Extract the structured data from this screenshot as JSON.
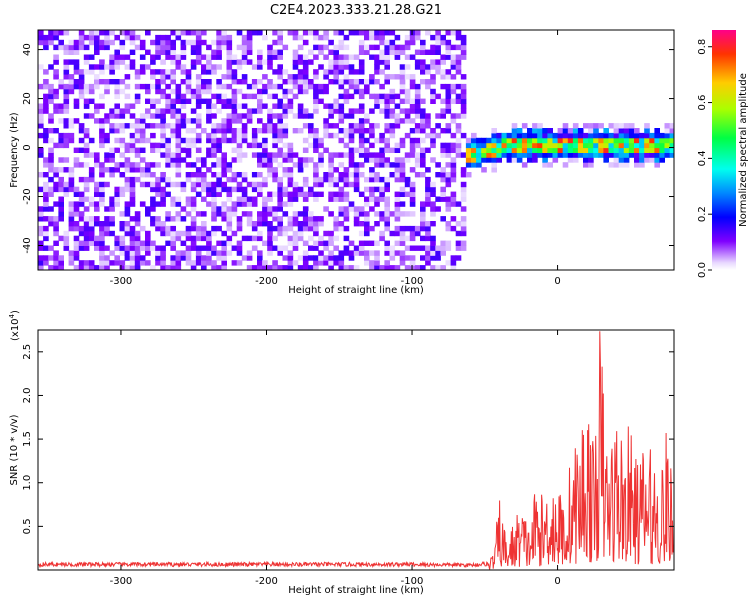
{
  "figure_title": "C2E4.2023.333.21.28.G21",
  "chart_data": [
    {
      "type": "heatmap",
      "title": "C2E4.2023.333.21.28.G21",
      "xlabel": "Height of straight line (km)",
      "ylabel": "Frequency (Hz)",
      "xlim": [
        -357,
        80
      ],
      "ylim": [
        -50,
        48
      ],
      "x_ticks": [
        -300,
        -200,
        -100,
        0
      ],
      "y_ticks": [
        -40,
        -20,
        0,
        20,
        40
      ],
      "grid": false,
      "colorbar": {
        "label": "Normalized spectral amplitude",
        "range": [
          0,
          0.86
        ],
        "ticks": [
          0.0,
          0.2,
          0.4,
          0.6,
          0.8
        ]
      },
      "regions": [
        {
          "x_range": [
            -357,
            -65
          ],
          "freq_range": [
            -50,
            48
          ],
          "amplitude": "low (0–0.15), broadband noise"
        },
        {
          "x_range": [
            -65,
            80
          ],
          "center_freq": 0,
          "amplitude": "high (0.3–0.86), narrow signal band near 0 Hz"
        }
      ]
    },
    {
      "type": "line",
      "xlabel": "Height of straight line (km)",
      "ylabel": "SNR (10 * v/v)",
      "y_scale_label": "(x10",
      "y_scale_exp": "4",
      "y_scale_close": ")",
      "xlim": [
        -357,
        80
      ],
      "ylim": [
        0,
        2.75
      ],
      "x_ticks": [
        -300,
        -200,
        -100,
        0
      ],
      "y_ticks": [
        0.5,
        1.0,
        1.5,
        2.0,
        2.5
      ],
      "grid": false,
      "series_color": "#ee3333",
      "x": [
        -357,
        -300,
        -200,
        -100,
        -60,
        -48,
        -44,
        -40,
        -35,
        -30,
        -25,
        -20,
        -15,
        -10,
        -5,
        0,
        5,
        10,
        15,
        20,
        25,
        29,
        30,
        32,
        35,
        40,
        45,
        50,
        55,
        60,
        65,
        70,
        75,
        80
      ],
      "y": [
        0.08,
        0.08,
        0.08,
        0.08,
        0.07,
        0.09,
        0.2,
        0.8,
        0.35,
        0.55,
        0.75,
        0.5,
        0.95,
        0.8,
        1.15,
        0.9,
        0.85,
        1.35,
        1.5,
        2.05,
        1.3,
        2.75,
        2.7,
        1.8,
        1.4,
        1.75,
        1.5,
        1.6,
        1.2,
        1.45,
        1.3,
        1.15,
        1.55,
        0.9
      ]
    }
  ]
}
